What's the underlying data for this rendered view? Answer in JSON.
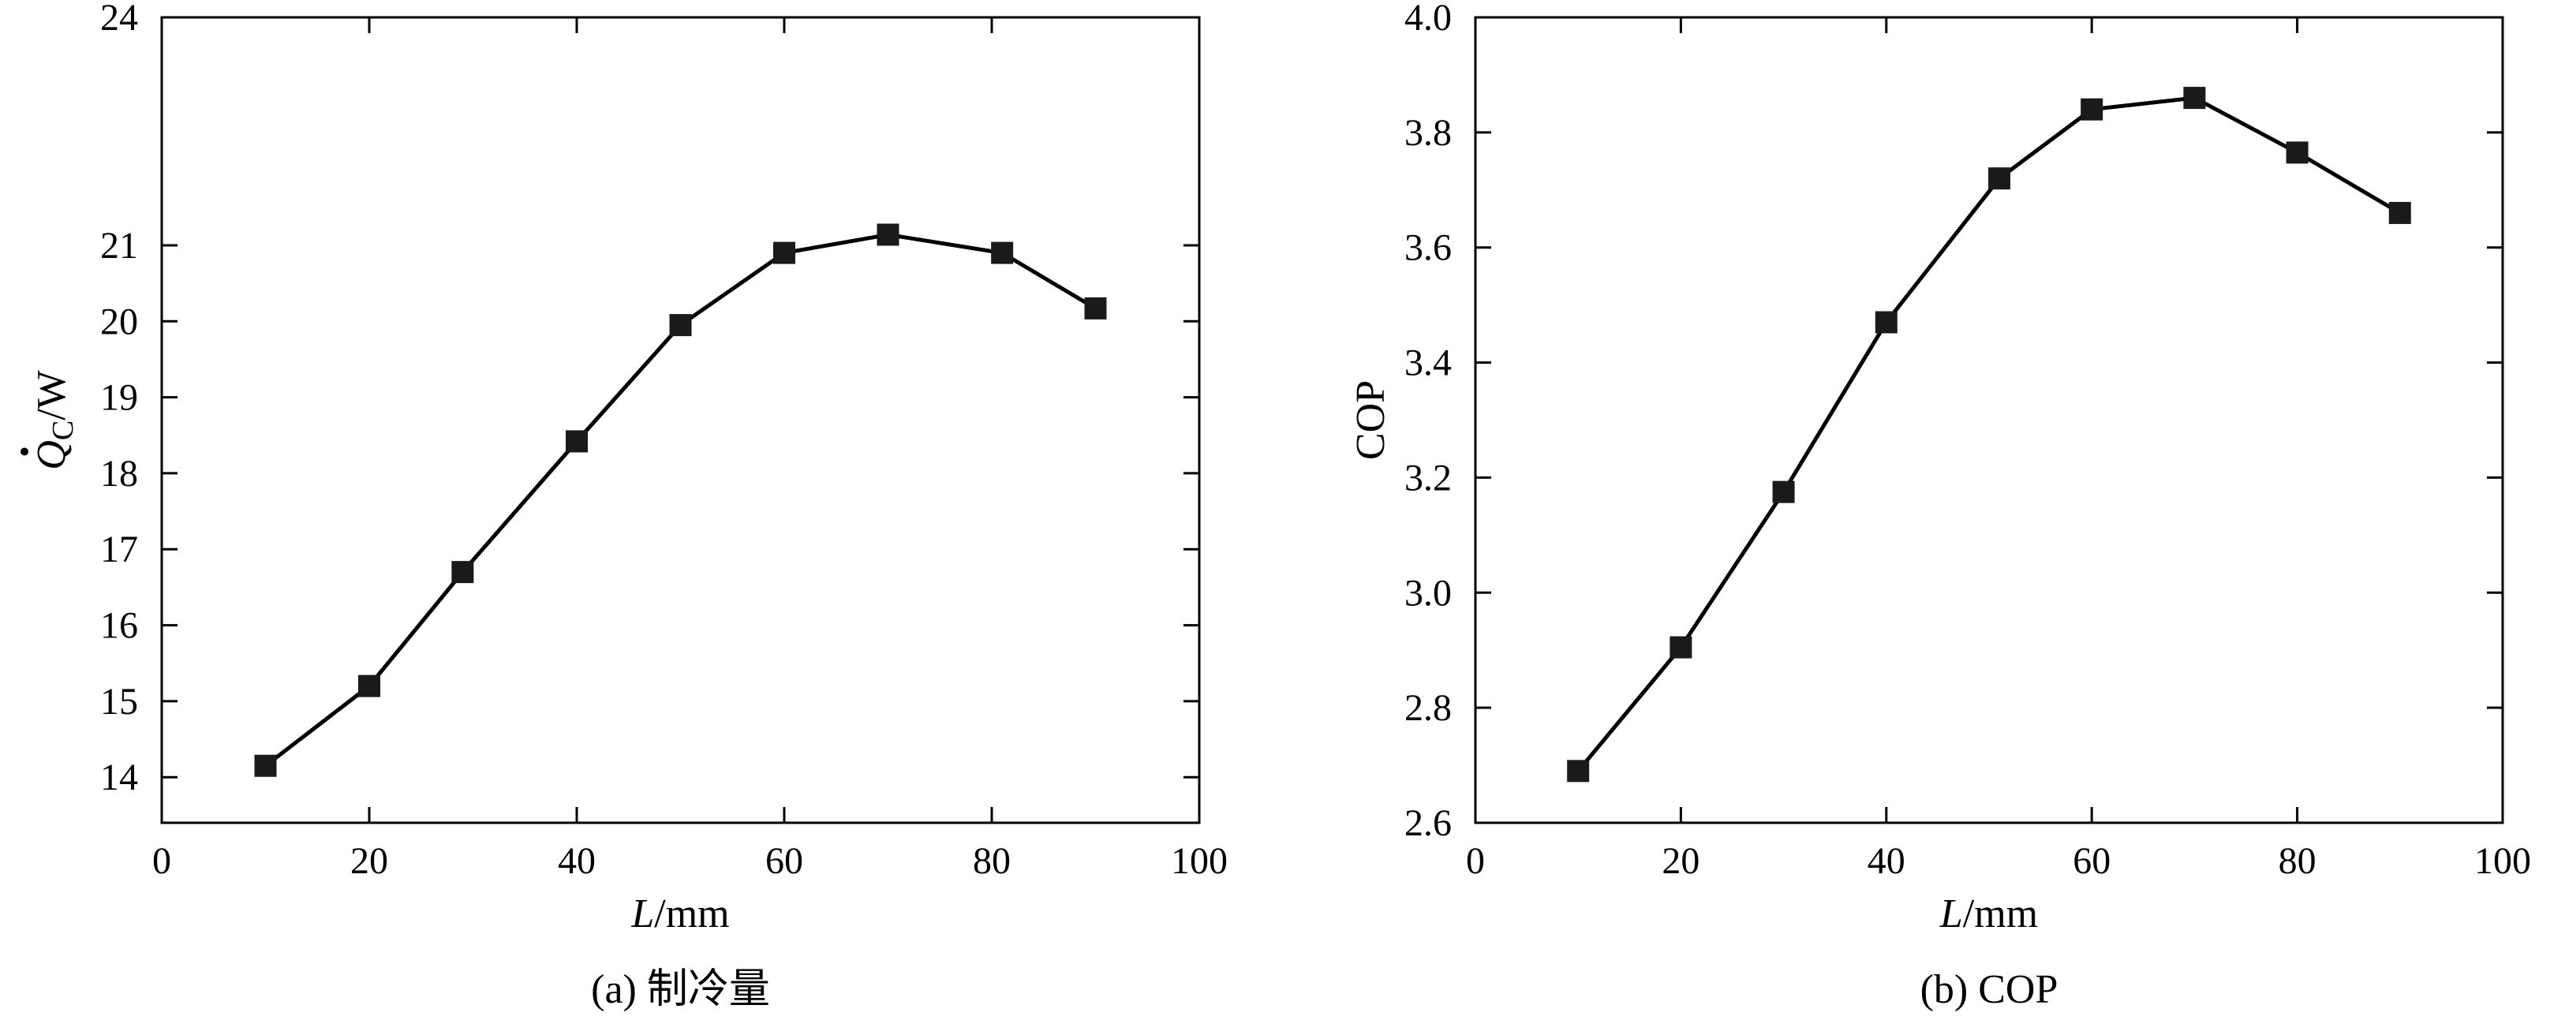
{
  "chart_data": [
    {
      "type": "line",
      "caption": "(a) 制冷量",
      "xlabel": {
        "italic": "L",
        "unit": "/mm"
      },
      "ylabel": {
        "symbol": "Q",
        "subscript": "C",
        "unit": "/W"
      },
      "xlim": [
        0,
        100
      ],
      "ylim": [
        13.4,
        24
      ],
      "xticks": [
        0,
        20,
        40,
        60,
        80,
        100
      ],
      "yticks": [
        14,
        15,
        16,
        17,
        18,
        19,
        20,
        21,
        24
      ],
      "ytick_labels": [
        "14",
        "15",
        "16",
        "17",
        "18",
        "19",
        "20",
        "21",
        "24"
      ],
      "grid": false,
      "x": [
        10,
        20,
        29,
        40,
        50,
        60,
        70,
        81,
        90
      ],
      "y": [
        14.15,
        15.2,
        16.7,
        18.42,
        19.95,
        20.9,
        21.14,
        20.9,
        20.17
      ]
    },
    {
      "type": "line",
      "caption": "(b) COP",
      "xlabel": {
        "italic": "L",
        "unit": "/mm"
      },
      "ylabel": {
        "text": "COP"
      },
      "xlim": [
        0,
        100
      ],
      "ylim": [
        2.6,
        4.0
      ],
      "xticks": [
        0,
        20,
        40,
        60,
        80,
        100
      ],
      "yticks": [
        2.6,
        2.8,
        3.0,
        3.2,
        3.4,
        3.6,
        3.8,
        4.0
      ],
      "ytick_labels": [
        "2.6",
        "2.8",
        "3.0",
        "3.2",
        "3.4",
        "3.6",
        "3.8",
        "4.0"
      ],
      "grid": false,
      "x": [
        10,
        20,
        30,
        40,
        51,
        60,
        70,
        80,
        90
      ],
      "y": [
        2.69,
        2.905,
        3.175,
        3.47,
        3.72,
        3.84,
        3.86,
        3.765,
        3.66
      ]
    }
  ]
}
